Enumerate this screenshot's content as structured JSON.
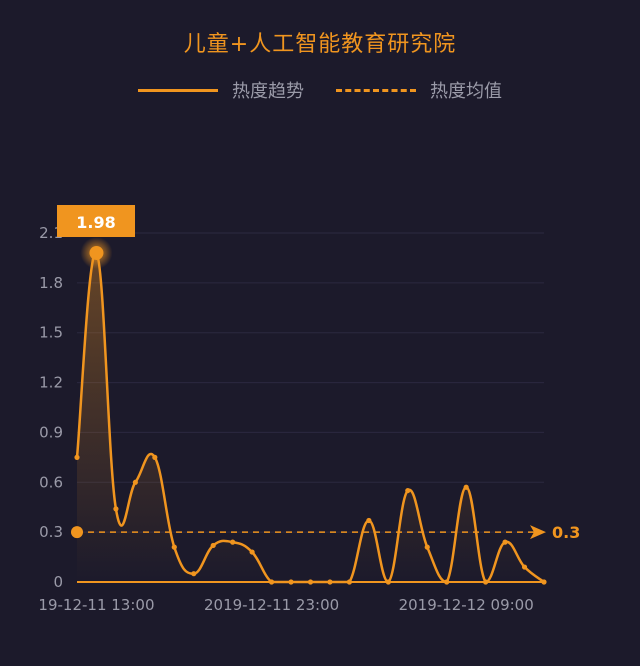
{
  "chart_data": {
    "type": "line",
    "title": "儿童+人工智能教育研究院",
    "legend": [
      "热度趋势",
      "热度均值"
    ],
    "legend_position": "top-center",
    "ylim": [
      0,
      2.1
    ],
    "y_ticks": [
      "0",
      "0.3",
      "0.6",
      "0.9",
      "1.2",
      "1.5",
      "1.8",
      "2.1"
    ],
    "x_tick_labels": [
      "19-12-11 13:00",
      "2019-12-11 23:00",
      "2019-12-12 09:00"
    ],
    "x_tick_indices": [
      1,
      10,
      20
    ],
    "grid": true,
    "series": [
      {
        "name": "热度趋势",
        "values": [
          0.75,
          1.98,
          0.44,
          0.6,
          0.75,
          0.21,
          0.05,
          0.22,
          0.24,
          0.18,
          0.0,
          0.0,
          0.0,
          0.0,
          0.0,
          0.37,
          0.0,
          0.55,
          0.21,
          0.0,
          0.57,
          0.0,
          0.24,
          0.09,
          0.0
        ]
      }
    ],
    "average": {
      "name": "热度均值",
      "value": 0.3,
      "label": "0.3"
    },
    "max_marker": {
      "index": 1,
      "label": "1.98"
    }
  },
  "colors": {
    "background": "#1c1a2b",
    "accent": "#f0951f",
    "text": "#9a9aa8",
    "grid": "#2b2940"
  }
}
